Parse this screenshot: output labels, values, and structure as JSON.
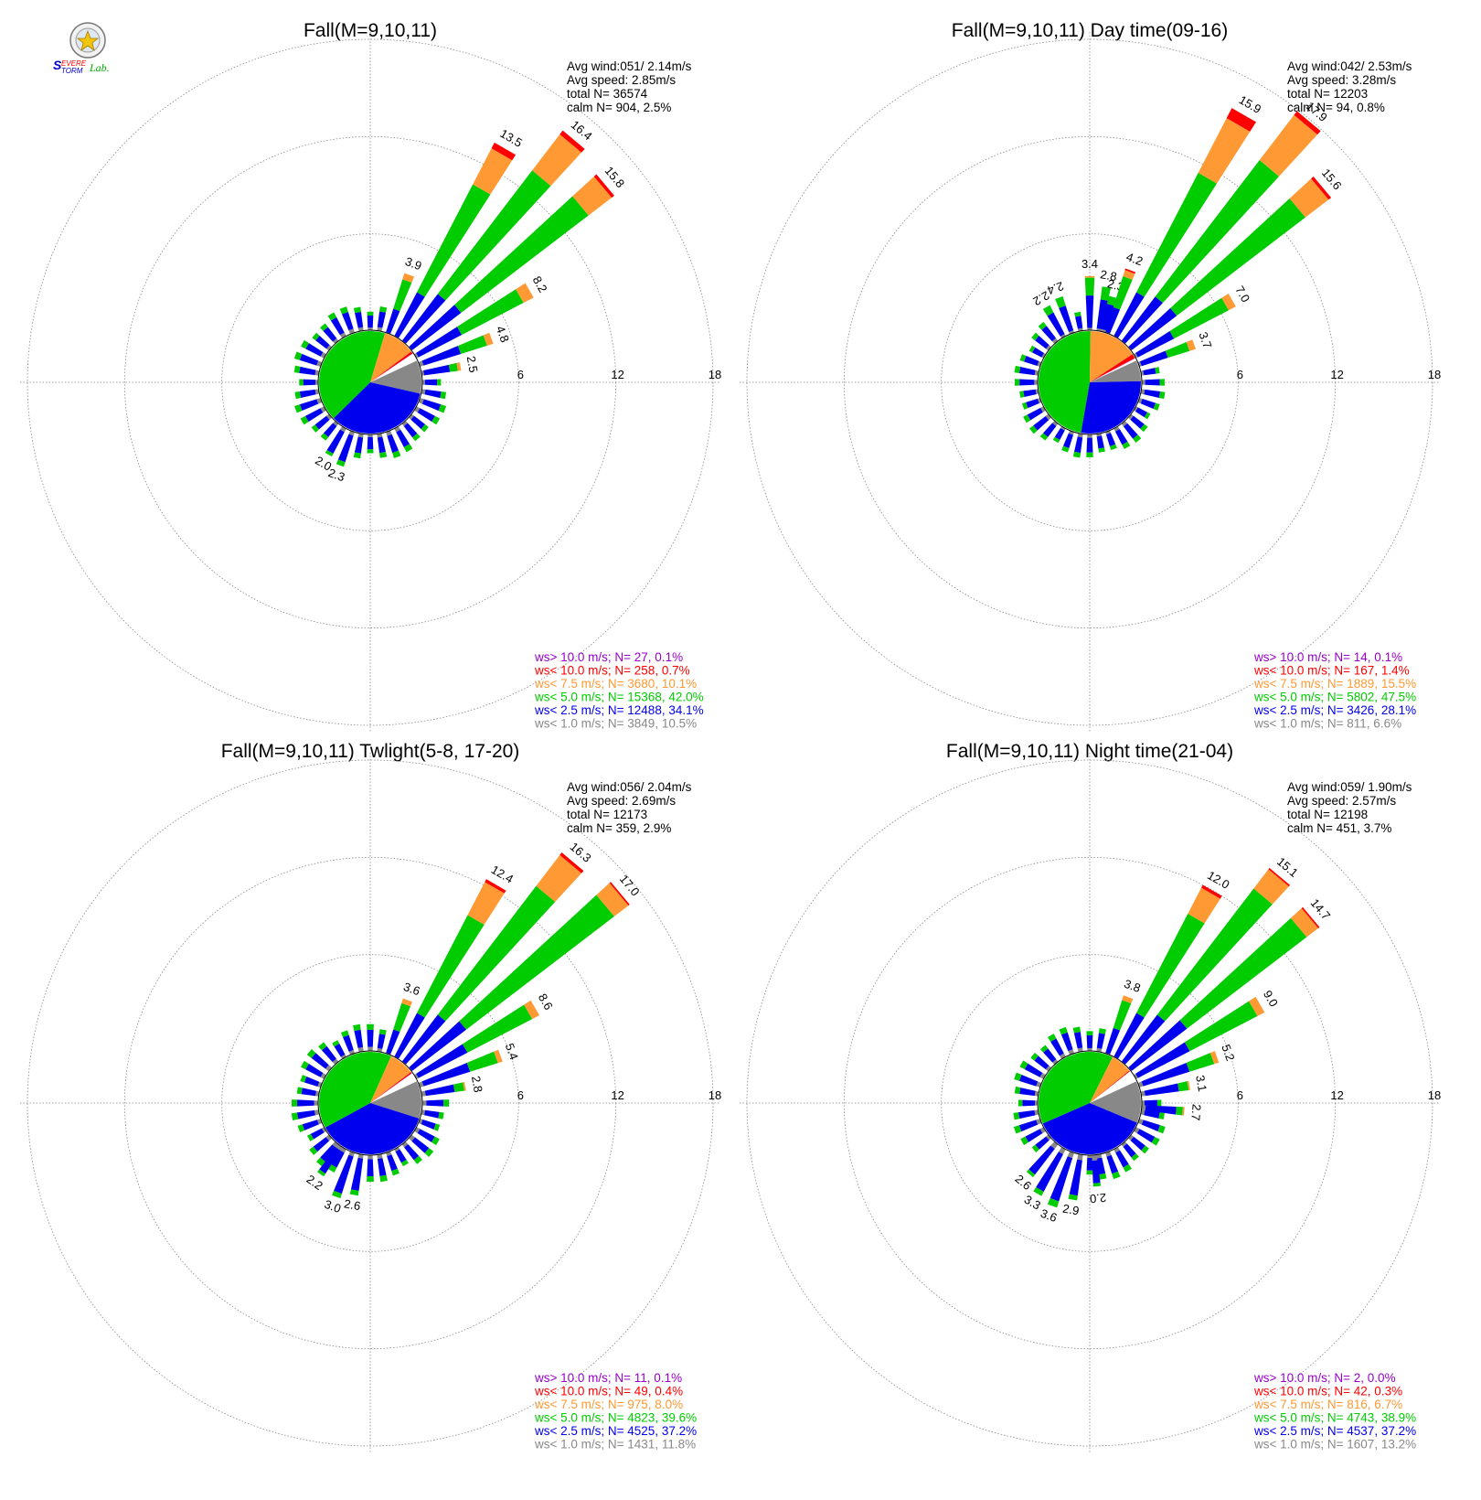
{
  "logo": {
    "text_top": "Severe",
    "text_bottom": "Storm",
    "text_lab": "Lab."
  },
  "colors": {
    "calm": "#888888",
    "lt1": "#888888",
    "lt2_5": "#0000ee",
    "lt5": "#00cc00",
    "lt7_5": "#ff9933",
    "lt10": "#ff0000",
    "gt10": "#9900cc",
    "grid": "#888888"
  },
  "chart_data": [
    {
      "type": "windrose",
      "title": "Fall(M=9,10,11)",
      "ring_labels": [
        "6",
        "12",
        "18"
      ],
      "rmax": 18,
      "stats": [
        "Avg wind:051/ 2.14m/s",
        "Avg speed: 2.85m/s",
        "total N=     36574",
        "calm N=    904,   2.5%"
      ],
      "legend": [
        {
          "text": "ws> 10.0 m/s; N=    27,  0.1%",
          "color": "#9900cc"
        },
        {
          "text": "ws< 10.0 m/s; N=   258,  0.7%",
          "color": "#ff0000"
        },
        {
          "text": "ws<  7.5 m/s; N=  3680, 10.1%",
          "color": "#ff9933"
        },
        {
          "text": "ws<  5.0 m/s; N= 15368, 42.0%",
          "color": "#00cc00"
        },
        {
          "text": "ws<  2.5 m/s; N= 12488, 34.1%",
          "color": "#0000ee"
        },
        {
          "text": "ws<  1.0 m/s; N=  3849, 10.5%",
          "color": "#888888"
        }
      ],
      "pie": [
        10.5,
        34.1,
        42.0,
        10.1,
        0.7,
        0.1
      ],
      "bars": [
        {
          "dir": 20,
          "total": 3.9,
          "label": "3.9",
          "segs": [
            0.1,
            1.5,
            1.9,
            0.4,
            0.0
          ]
        },
        {
          "dir": 30,
          "total": 13.5,
          "label": "13.5",
          "segs": [
            0.1,
            3.0,
            7.5,
            2.5,
            0.4
          ]
        },
        {
          "dir": 40,
          "total": 16.4,
          "label": "16.4",
          "segs": [
            0.1,
            3.6,
            9.6,
            2.8,
            0.3
          ]
        },
        {
          "dir": 50,
          "total": 15.8,
          "label": "15.8",
          "segs": [
            0.1,
            3.8,
            9.9,
            1.8,
            0.2
          ]
        },
        {
          "dir": 60,
          "total": 8.2,
          "label": "8.2",
          "segs": [
            0.2,
            3.0,
            4.3,
            0.7,
            0.0
          ]
        },
        {
          "dir": 70,
          "total": 4.8,
          "label": "4.8",
          "segs": [
            0.3,
            2.4,
            1.7,
            0.4,
            0.0
          ]
        },
        {
          "dir": 80,
          "total": 2.5,
          "label": "2.5",
          "segs": [
            0.2,
            1.6,
            0.5,
            0.2,
            0.0
          ]
        },
        {
          "dir": 200,
          "total": 2.3,
          "label": "2.3",
          "segs": [
            0.3,
            1.7,
            0.3,
            0.0,
            0.0
          ]
        },
        {
          "dir": 210,
          "total": 2.0,
          "label": "2.0",
          "segs": [
            0.3,
            1.5,
            0.2,
            0.0,
            0.0
          ]
        }
      ],
      "others_base": 1.6
    },
    {
      "type": "windrose",
      "title": "Fall(M=9,10,11) Day time(09-16)",
      "ring_labels": [
        "6",
        "12",
        "18"
      ],
      "rmax": 18,
      "stats": [
        "Avg wind:042/ 2.53m/s",
        "Avg speed: 3.28m/s",
        "total N=     12203",
        "calm N=     94,   0.8%"
      ],
      "legend": [
        {
          "text": "ws> 10.0 m/s; N=    14,  0.1%",
          "color": "#9900cc"
        },
        {
          "text": "ws< 10.0 m/s; N=   167,  1.4%",
          "color": "#ff0000"
        },
        {
          "text": "ws<  7.5 m/s; N=  1889, 15.5%",
          "color": "#ff9933"
        },
        {
          "text": "ws<  5.0 m/s; N=  5802, 47.5%",
          "color": "#00cc00"
        },
        {
          "text": "ws<  2.5 m/s; N=  3426, 28.1%",
          "color": "#0000ee"
        },
        {
          "text": "ws<  1.0 m/s; N=   811,  6.6%",
          "color": "#888888"
        }
      ],
      "pie": [
        6.6,
        28.1,
        47.5,
        15.5,
        1.4,
        0.1
      ],
      "bars": [
        {
          "dir": 330,
          "total": 2.2,
          "label": "2.2",
          "segs": [
            0.2,
            1.5,
            0.5,
            0.0,
            0.0
          ]
        },
        {
          "dir": 340,
          "total": 2.4,
          "label": "2.4",
          "segs": [
            0.2,
            1.6,
            0.6,
            0.0,
            0.0
          ]
        },
        {
          "dir": 0,
          "total": 3.4,
          "label": "3.4",
          "segs": [
            0.2,
            2.0,
            1.1,
            0.1,
            0.0
          ]
        },
        {
          "dir": 10,
          "total": 2.8,
          "label": "2.8",
          "segs": [
            0.2,
            1.8,
            0.8,
            0.0,
            0.0
          ]
        },
        {
          "dir": 15,
          "total": 2.3,
          "label": "2.3",
          "segs": [
            0.2,
            1.6,
            0.5,
            0.0,
            0.0
          ]
        },
        {
          "dir": 20,
          "total": 4.2,
          "label": "4.2",
          "segs": [
            0.1,
            1.6,
            2.0,
            0.4,
            0.1
          ]
        },
        {
          "dir": 30,
          "total": 15.9,
          "label": "15.9",
          "segs": [
            0.1,
            3.0,
            8.3,
            3.8,
            0.7
          ]
        },
        {
          "dir": 40,
          "total": 17.9,
          "label": "17.9",
          "segs": [
            0.1,
            3.4,
            10.6,
            3.5,
            0.3
          ]
        },
        {
          "dir": 50,
          "total": 15.6,
          "label": "15.6",
          "segs": [
            0.1,
            3.5,
            10.0,
            1.8,
            0.2
          ]
        },
        {
          "dir": 60,
          "total": 7.0,
          "label": "7.0",
          "segs": [
            0.2,
            2.5,
            3.8,
            0.5,
            0.0
          ]
        },
        {
          "dir": 70,
          "total": 3.7,
          "label": "3.7",
          "segs": [
            0.2,
            1.7,
            1.4,
            0.4,
            0.0
          ]
        }
      ],
      "others_base": 1.4
    },
    {
      "type": "windrose",
      "title": "Fall(M=9,10,11) Twlight(5-8, 17-20)",
      "ring_labels": [
        "6",
        "12",
        "18"
      ],
      "rmax": 18,
      "stats": [
        "Avg wind:056/ 2.04m/s",
        "Avg speed: 2.69m/s",
        "total N=     12173",
        "calm N=    359,   2.9%"
      ],
      "legend": [
        {
          "text": "ws> 10.0 m/s; N=    11,  0.1%",
          "color": "#9900cc"
        },
        {
          "text": "ws< 10.0 m/s; N=    49,  0.4%",
          "color": "#ff0000"
        },
        {
          "text": "ws<  7.5 m/s; N=   975,  8.0%",
          "color": "#ff9933"
        },
        {
          "text": "ws<  5.0 m/s; N=  4823, 39.6%",
          "color": "#00cc00"
        },
        {
          "text": "ws<  2.5 m/s; N=  4525, 37.2%",
          "color": "#0000ee"
        },
        {
          "text": "ws<  1.0 m/s; N=  1431, 11.8%",
          "color": "#888888"
        }
      ],
      "pie": [
        11.8,
        37.2,
        39.6,
        8.0,
        0.4,
        0.1
      ],
      "bars": [
        {
          "dir": 20,
          "total": 3.6,
          "label": "3.6",
          "segs": [
            0.1,
            1.5,
            1.7,
            0.3,
            0.0
          ]
        },
        {
          "dir": 30,
          "total": 12.4,
          "label": "12.4",
          "segs": [
            0.1,
            3.0,
            6.8,
            2.3,
            0.2
          ]
        },
        {
          "dir": 40,
          "total": 16.3,
          "label": "16.3",
          "segs": [
            0.1,
            3.6,
            10.0,
            2.4,
            0.2
          ]
        },
        {
          "dir": 50,
          "total": 17.0,
          "label": "17.0",
          "segs": [
            0.1,
            4.2,
            11.5,
            1.1,
            0.1
          ]
        },
        {
          "dir": 60,
          "total": 8.6,
          "label": "8.6",
          "segs": [
            0.2,
            3.4,
            4.5,
            0.5,
            0.0
          ]
        },
        {
          "dir": 70,
          "total": 5.4,
          "label": "5.4",
          "segs": [
            0.3,
            3.0,
            1.8,
            0.3,
            0.0
          ]
        },
        {
          "dir": 80,
          "total": 2.8,
          "label": "2.8",
          "segs": [
            0.3,
            1.8,
            0.6,
            0.1,
            0.0
          ]
        },
        {
          "dir": 190,
          "total": 2.6,
          "label": "2.6",
          "segs": [
            0.3,
            2.0,
            0.3,
            0.0,
            0.0
          ]
        },
        {
          "dir": 200,
          "total": 3.0,
          "label": "3.0",
          "segs": [
            0.3,
            2.4,
            0.3,
            0.0,
            0.0
          ]
        },
        {
          "dir": 215,
          "total": 2.2,
          "label": "2.2",
          "segs": [
            0.3,
            1.7,
            0.2,
            0.0,
            0.0
          ]
        }
      ],
      "others_base": 1.6
    },
    {
      "type": "windrose",
      "title": "Fall(M=9,10,11) Night time(21-04)",
      "ring_labels": [
        "6",
        "12",
        "18"
      ],
      "rmax": 18,
      "stats": [
        "Avg wind:059/ 1.90m/s",
        "Avg speed: 2.57m/s",
        "total N=     12198",
        "calm N=    451,   3.7%"
      ],
      "legend": [
        {
          "text": "ws> 10.0 m/s; N=     2,  0.0%",
          "color": "#9900cc"
        },
        {
          "text": "ws< 10.0 m/s; N=    42,  0.3%",
          "color": "#ff0000"
        },
        {
          "text": "ws<  7.5 m/s; N=   816,  6.7%",
          "color": "#ff9933"
        },
        {
          "text": "ws<  5.0 m/s; N=  4743, 38.9%",
          "color": "#00cc00"
        },
        {
          "text": "ws<  2.5 m/s; N=  4537, 37.2%",
          "color": "#0000ee"
        },
        {
          "text": "ws<  1.0 m/s; N=  1607, 13.2%",
          "color": "#888888"
        }
      ],
      "pie": [
        13.2,
        37.2,
        38.9,
        6.7,
        0.3,
        0.0
      ],
      "bars": [
        {
          "dir": 20,
          "total": 3.8,
          "label": "3.8",
          "segs": [
            0.1,
            1.6,
            1.8,
            0.3,
            0.0
          ]
        },
        {
          "dir": 30,
          "total": 12.0,
          "label": "12.0",
          "segs": [
            0.1,
            3.0,
            6.9,
            1.8,
            0.2
          ]
        },
        {
          "dir": 40,
          "total": 15.1,
          "label": "15.1",
          "segs": [
            0.1,
            3.6,
            9.8,
            1.5,
            0.1
          ]
        },
        {
          "dir": 50,
          "total": 14.7,
          "label": "14.7",
          "segs": [
            0.1,
            4.3,
            9.3,
            0.9,
            0.1
          ]
        },
        {
          "dir": 60,
          "total": 9.0,
          "label": "9.0",
          "segs": [
            0.2,
            3.6,
            4.7,
            0.5,
            0.0
          ]
        },
        {
          "dir": 70,
          "total": 5.2,
          "label": "5.2",
          "segs": [
            0.3,
            3.0,
            1.6,
            0.3,
            0.0
          ]
        },
        {
          "dir": 80,
          "total": 3.1,
          "label": "3.1",
          "segs": [
            0.3,
            2.1,
            0.6,
            0.1,
            0.0
          ]
        },
        {
          "dir": 95,
          "total": 2.7,
          "label": "2.7",
          "segs": [
            0.3,
            1.9,
            0.4,
            0.1,
            0.0
          ]
        },
        {
          "dir": 175,
          "total": 2.0,
          "label": "2.0",
          "segs": [
            0.4,
            1.4,
            0.2,
            0.0,
            0.0
          ]
        },
        {
          "dir": 190,
          "total": 2.9,
          "label": "2.9",
          "segs": [
            0.4,
            2.2,
            0.3,
            0.0,
            0.0
          ]
        },
        {
          "dir": 200,
          "total": 3.6,
          "label": "3.6",
          "segs": [
            0.4,
            2.8,
            0.4,
            0.0,
            0.0
          ]
        },
        {
          "dir": 210,
          "total": 3.3,
          "label": "3.3",
          "segs": [
            0.4,
            2.6,
            0.3,
            0.0,
            0.0
          ]
        },
        {
          "dir": 220,
          "total": 2.6,
          "label": "2.6",
          "segs": [
            0.4,
            2.0,
            0.2,
            0.0,
            0.0
          ]
        }
      ],
      "others_base": 1.6
    }
  ]
}
